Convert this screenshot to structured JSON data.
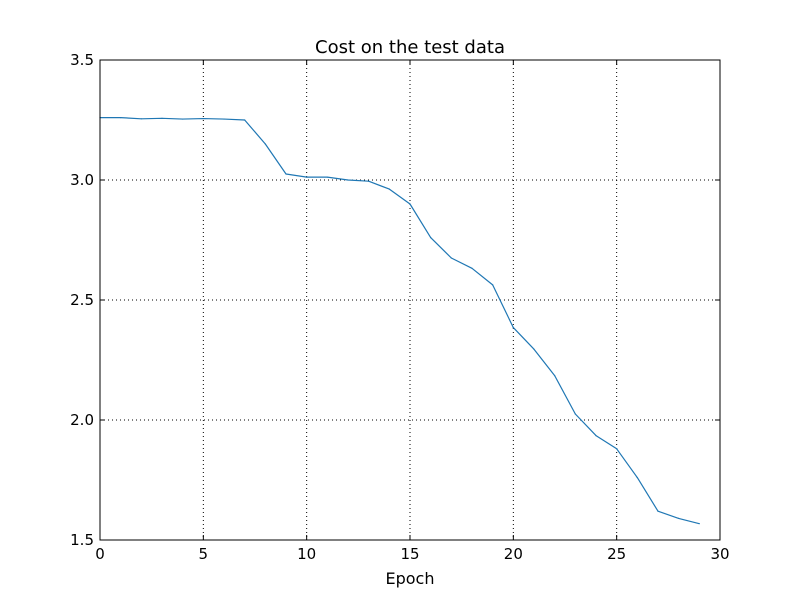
{
  "chart_data": {
    "type": "line",
    "title": "Cost on the test data",
    "xlabel": "Epoch",
    "ylabel": "",
    "xlim": [
      0,
      30
    ],
    "ylim": [
      1.5,
      3.5
    ],
    "xticks": [
      0,
      5,
      10,
      15,
      20,
      25,
      30
    ],
    "yticks": [
      1.5,
      2.0,
      2.5,
      3.0,
      3.5
    ],
    "xtick_labels": [
      "0",
      "5",
      "10",
      "15",
      "20",
      "25",
      "30"
    ],
    "ytick_labels": [
      "1.5",
      "2.0",
      "2.5",
      "3.0",
      "3.5"
    ],
    "grid": true,
    "grid_style": "dotted",
    "series": [
      {
        "color": "#1f77b4",
        "x": [
          0,
          1,
          2,
          3,
          4,
          5,
          6,
          7,
          8,
          9,
          10,
          11,
          12,
          13,
          14,
          15,
          16,
          17,
          18,
          19,
          20,
          21,
          22,
          23,
          24,
          25,
          26,
          27,
          28,
          29
        ],
        "y": [
          3.26,
          3.26,
          3.255,
          3.257,
          3.254,
          3.256,
          3.254,
          3.25,
          3.15,
          3.025,
          3.012,
          3.012,
          3.0,
          2.995,
          2.962,
          2.9,
          2.76,
          2.675,
          2.632,
          2.563,
          2.385,
          2.295,
          2.185,
          2.025,
          1.935,
          1.88,
          1.76,
          1.62,
          1.59,
          1.568
        ]
      }
    ]
  }
}
